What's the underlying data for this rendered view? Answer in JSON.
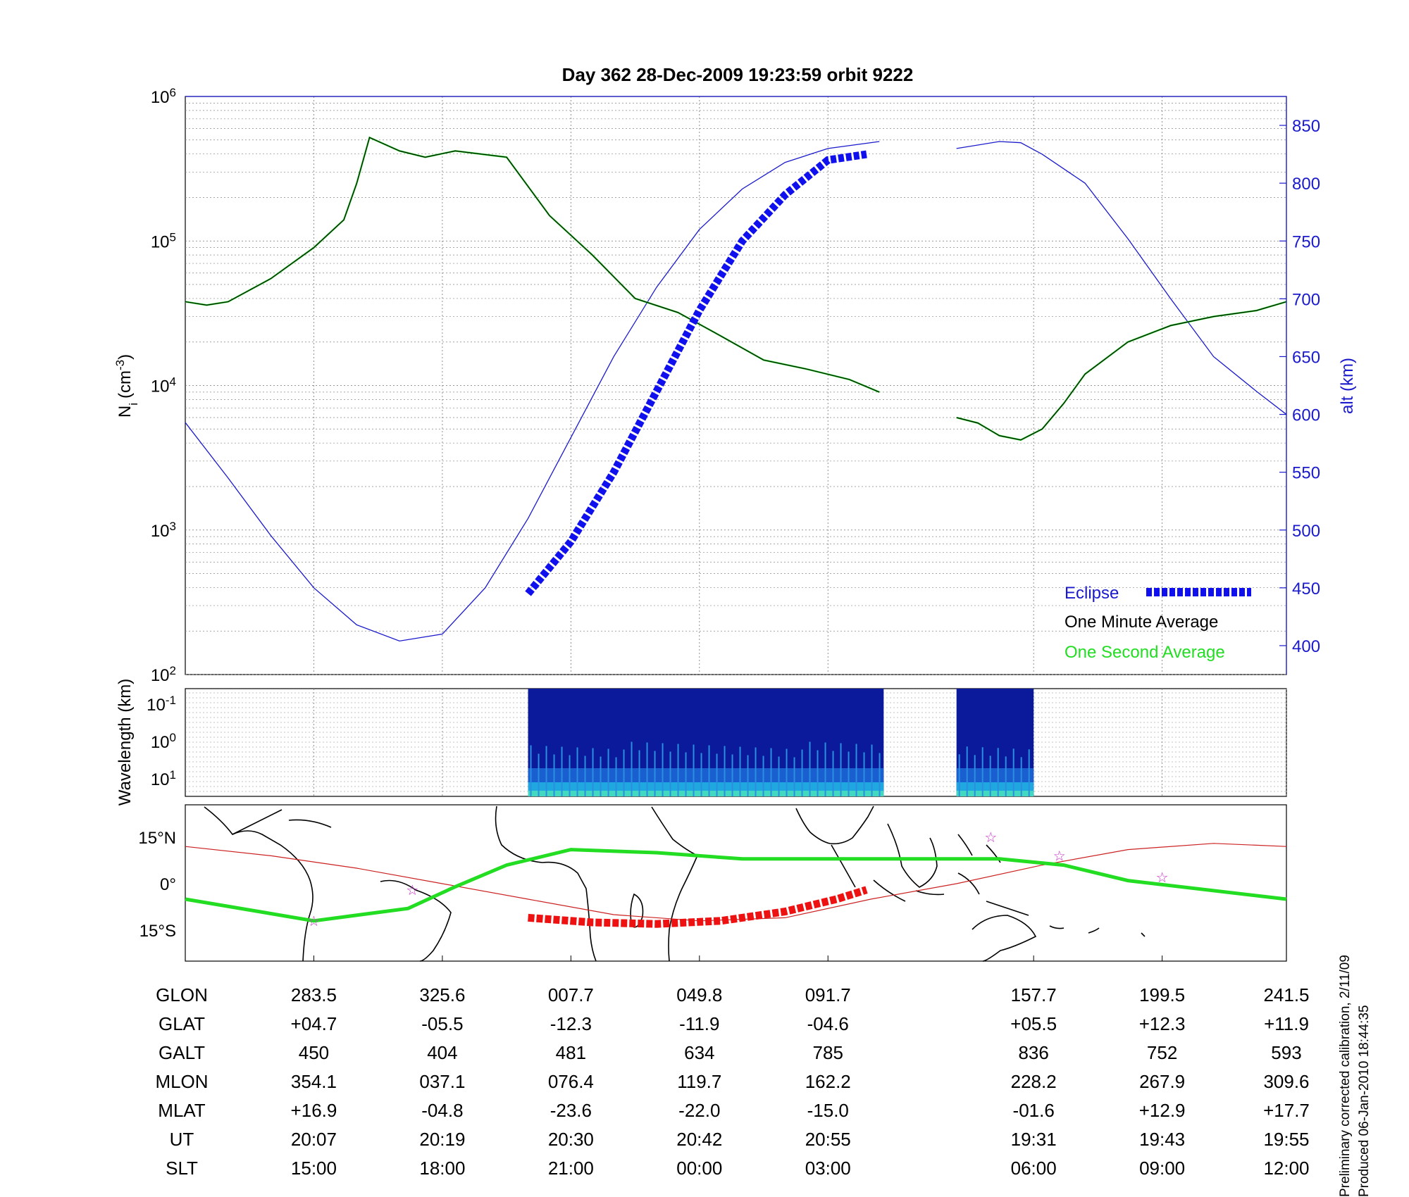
{
  "title": "Day 362  28-Dec-2009 19:23:59   orbit 9222",
  "colors": {
    "alt": "#1a1acc",
    "ni_minute": "#000000",
    "ni_second": "#22dd22",
    "eclipse": "#1010ee",
    "track": "#cc2222",
    "red_seg": "#ee1111",
    "star": "#cc33cc",
    "land": "#000000"
  },
  "ylabel_left": "N",
  "ylabel_left_sub": "i",
  "ylabel_left_unit": "(cm",
  "ylabel_left_exp": "-3",
  "ylabel_left_close": ")",
  "ylabel_right": "alt (km)",
  "spec_ylabel": "Wavelength (km)",
  "legend": {
    "eclipse": "Eclipse",
    "minute": "One Minute Average",
    "second": "One Second Average"
  },
  "footer": [
    "Preliminary corrected calibration, 2/11/09",
    "Produced 06-Jan-2010 18:44:35"
  ],
  "table": {
    "rows": [
      {
        "label": "GLON",
        "values": [
          "283.5",
          "325.6",
          "007.7",
          "049.8",
          "091.7",
          "157.7",
          "199.5",
          "241.5"
        ]
      },
      {
        "label": "GLAT",
        "values": [
          "+04.7",
          "-05.5",
          "-12.3",
          "-11.9",
          "-04.6",
          "+05.5",
          "+12.3",
          "+11.9"
        ]
      },
      {
        "label": "GALT",
        "values": [
          "450",
          "404",
          "481",
          "634",
          "785",
          "836",
          "752",
          "593"
        ]
      },
      {
        "label": "MLON",
        "values": [
          "354.1",
          "037.1",
          "076.4",
          "119.7",
          "162.2",
          "228.2",
          "267.9",
          "309.6"
        ]
      },
      {
        "label": "MLAT",
        "values": [
          "+16.9",
          "-04.8",
          "-23.6",
          "-22.0",
          "-15.0",
          "-01.6",
          "+12.9",
          "+17.7"
        ]
      },
      {
        "label": "UT",
        "values": [
          "20:07",
          "20:19",
          "20:30",
          "20:42",
          "20:55",
          "19:31",
          "19:43",
          "19:55"
        ]
      },
      {
        "label": "SLT",
        "values": [
          "15:00",
          "18:00",
          "21:00",
          "00:00",
          "03:00",
          "06:00",
          "09:00",
          "12:00"
        ]
      }
    ]
  },
  "chart_data": [
    {
      "type": "line",
      "name": "density-altitude",
      "x_slt_ticks": [
        "15:00",
        "18:00",
        "21:00",
        "00:00",
        "03:00",
        "06:00",
        "09:00",
        "12:00"
      ],
      "yscale_left": "log",
      "ylim_left": [
        100,
        1000000
      ],
      "yticks_left": [
        {
          "base": "10",
          "exp": "2"
        },
        {
          "base": "10",
          "exp": "3"
        },
        {
          "base": "10",
          "exp": "4"
        },
        {
          "base": "10",
          "exp": "5"
        },
        {
          "base": "10",
          "exp": "6"
        }
      ],
      "ylim_right": [
        375,
        875
      ],
      "yticks_right": [
        400,
        450,
        500,
        550,
        600,
        650,
        700,
        750,
        800,
        850
      ],
      "xlim": [
        0,
        25.7
      ],
      "grid": true,
      "legend_position": "bottom-right",
      "ni_series": [
        {
          "x": [
            0.0,
            0.5,
            1.0,
            2.0,
            3.0,
            3.7,
            4.0,
            4.3,
            5.0,
            5.6,
            6.3,
            7.5,
            8.5,
            9.5,
            10.5,
            11.5,
            12.5,
            13.5,
            14.5,
            15.5,
            16.2
          ],
          "y": [
            38000,
            36000,
            38000,
            55000,
            90000,
            140000,
            250000,
            520000,
            420000,
            380000,
            420000,
            380000,
            150000,
            80000,
            40000,
            32000,
            22000,
            15000,
            13000,
            11000,
            9000
          ]
        },
        {
          "x": [
            18.0,
            18.5,
            19.0,
            19.5,
            20.0,
            20.5,
            21.0,
            22.0,
            23.0,
            24.0,
            25.0,
            25.7
          ],
          "y": [
            6000,
            5500,
            4500,
            4200,
            5000,
            7500,
            12000,
            20000,
            26000,
            30000,
            33000,
            38000
          ]
        }
      ],
      "alt_series": [
        {
          "x": [
            0.0,
            1.0,
            2.0,
            3.0,
            4.0,
            5.0,
            6.0,
            7.0,
            8.0,
            9.0,
            10.0,
            11.0,
            12.0,
            13.0,
            14.0,
            15.0,
            16.2
          ],
          "y": [
            593,
            545,
            495,
            450,
            418,
            404,
            410,
            450,
            510,
            580,
            650,
            710,
            760,
            795,
            818,
            830,
            836
          ]
        },
        {
          "x": [
            18.0,
            19.0,
            19.5,
            20.0,
            21.0,
            22.0,
            23.0,
            24.0,
            25.0,
            25.7
          ],
          "y": [
            830,
            836,
            835,
            825,
            800,
            752,
            700,
            650,
            620,
            600
          ]
        }
      ],
      "eclipse": {
        "x": [
          8.0,
          9.0,
          10.0,
          11.0,
          12.0,
          13.0,
          14.0,
          15.0,
          15.9
        ],
        "y": [
          445,
          490,
          550,
          620,
          690,
          750,
          790,
          820,
          825
        ]
      }
    },
    {
      "type": "heatmap",
      "name": "spectrogram",
      "yticks": [
        {
          "base": "10",
          "exp": "-1"
        },
        {
          "base": "10",
          "exp": "0"
        },
        {
          "base": "10",
          "exp": "1"
        }
      ],
      "data_blocks": [
        {
          "x": [
            8.0,
            16.3
          ]
        },
        {
          "x": [
            18.0,
            19.8
          ]
        }
      ]
    },
    {
      "type": "line",
      "name": "ground-track-map",
      "yticks": [
        "15°N",
        "0°",
        "15°S"
      ],
      "track": {
        "x": [
          0,
          2,
          4,
          6,
          8,
          10,
          12,
          14,
          16,
          18,
          20,
          22,
          24,
          25.7
        ],
        "lat": [
          12,
          9,
          5,
          0,
          -5,
          -10,
          -12,
          -11,
          -5,
          0,
          6,
          11,
          13,
          12
        ]
      },
      "magnetic_equator": {
        "x": [
          0,
          3,
          5.2,
          6.3,
          7.5,
          9,
          11,
          13,
          15,
          17,
          19,
          20.5,
          22,
          25.7
        ],
        "lat": [
          -5,
          -12,
          -8,
          -1,
          6,
          11,
          10,
          8,
          8,
          8,
          8,
          6,
          1,
          -5
        ]
      },
      "red_segment": {
        "x": [
          8.0,
          9.5,
          11.0,
          12.5,
          14.0,
          15.2,
          15.9
        ],
        "lat": [
          -11,
          -12.5,
          -13,
          -12,
          -9,
          -5,
          -2
        ]
      },
      "stars": [
        {
          "x": 3.0,
          "lat": -12
        },
        {
          "x": 5.3,
          "lat": -2
        },
        {
          "x": 18.8,
          "lat": 15
        },
        {
          "x": 20.4,
          "lat": 9
        },
        {
          "x": 22.8,
          "lat": 2
        }
      ]
    }
  ]
}
